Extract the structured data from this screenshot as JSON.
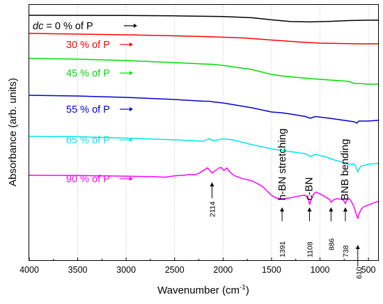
{
  "chart_data": {
    "type": "line",
    "xlabel_main": "Wavenumber (cm",
    "xlabel_sup": "-1",
    "xlabel_end": ")",
    "ylabel": "Absorbance (arb. units)",
    "xlim": [
      4000,
      400
    ],
    "x_ticks": [
      "4000",
      "3500",
      "3000",
      "2500",
      "2000",
      "1500",
      "1000",
      "500"
    ],
    "y_tick_labels": "none",
    "grid": "vertical dotted",
    "series": [
      {
        "label_prefix": "dc",
        "label_suffix": " = 0 % of P",
        "color": "#000000",
        "points": [
          [
            4000,
            0.0
          ],
          [
            3000,
            0.2
          ],
          [
            2500,
            0.8
          ],
          [
            2000,
            1.8
          ],
          [
            1700,
            3.5
          ],
          [
            1500,
            6.5
          ],
          [
            1300,
            9.0
          ],
          [
            1100,
            9.5
          ],
          [
            900,
            8.8
          ],
          [
            700,
            7.5
          ],
          [
            500,
            7.0
          ],
          [
            400,
            7.0
          ]
        ]
      },
      {
        "label": "30 % of P",
        "color": "#ff0000",
        "points": [
          [
            4000,
            0.0
          ],
          [
            3000,
            2.0
          ],
          [
            2500,
            3.5
          ],
          [
            2200,
            4.5
          ],
          [
            2100,
            5.0
          ],
          [
            1800,
            6.5
          ],
          [
            1500,
            9.5
          ],
          [
            1200,
            12.5
          ],
          [
            1000,
            14.0
          ],
          [
            800,
            14.5
          ],
          [
            600,
            15.0
          ],
          [
            400,
            15.0
          ]
        ]
      },
      {
        "label": "45 % of P",
        "color": "#00dd00",
        "points": [
          [
            4000,
            0.0
          ],
          [
            3500,
            1.0
          ],
          [
            3000,
            3.0
          ],
          [
            2500,
            6.0
          ],
          [
            2200,
            8.0
          ],
          [
            2100,
            8.5
          ],
          [
            2000,
            10.0
          ],
          [
            1700,
            16.0
          ],
          [
            1500,
            23.0
          ],
          [
            1400,
            25.0
          ],
          [
            1300,
            26.5
          ],
          [
            1100,
            29.0
          ],
          [
            900,
            31.0
          ],
          [
            700,
            33.0
          ],
          [
            650,
            36.0
          ],
          [
            600,
            36.0
          ],
          [
            500,
            37.0
          ],
          [
            400,
            37.0
          ]
        ]
      },
      {
        "label": "55 % of P",
        "color": "#0000cc",
        "points": [
          [
            4000,
            0.0
          ],
          [
            3500,
            1.0
          ],
          [
            3000,
            3.0
          ],
          [
            2500,
            6.0
          ],
          [
            2200,
            8.5
          ],
          [
            2150,
            8.5
          ],
          [
            2100,
            9.5
          ],
          [
            2000,
            11.0
          ],
          [
            1700,
            18.0
          ],
          [
            1500,
            24.0
          ],
          [
            1400,
            25.0
          ],
          [
            1300,
            27.0
          ],
          [
            1150,
            30.5
          ],
          [
            1100,
            33.0
          ],
          [
            1050,
            30.5
          ],
          [
            900,
            33.0
          ],
          [
            800,
            35.0
          ],
          [
            700,
            37.0
          ],
          [
            650,
            38.0
          ],
          [
            620,
            40.0
          ],
          [
            600,
            37.0
          ],
          [
            500,
            37.0
          ],
          [
            400,
            36.0
          ]
        ]
      },
      {
        "label": "65 % of P",
        "color": "#00e6e6",
        "points": [
          [
            4000,
            0.0
          ],
          [
            3500,
            0.5
          ],
          [
            3000,
            2.5
          ],
          [
            2500,
            5.0
          ],
          [
            2200,
            7.0
          ],
          [
            2150,
            3.5
          ],
          [
            2100,
            6.0
          ],
          [
            2050,
            5.0
          ],
          [
            2000,
            3.5
          ],
          [
            1900,
            5.0
          ],
          [
            1700,
            12.0
          ],
          [
            1500,
            18.0
          ],
          [
            1400,
            20.0
          ],
          [
            1300,
            22.0
          ],
          [
            1150,
            25.0
          ],
          [
            1100,
            29.0
          ],
          [
            1050,
            26.0
          ],
          [
            950,
            29.0
          ],
          [
            850,
            34.0
          ],
          [
            800,
            36.0
          ],
          [
            738,
            38.5
          ],
          [
            700,
            40.0
          ],
          [
            640,
            40.0
          ],
          [
            610,
            51.0
          ],
          [
            580,
            43.0
          ],
          [
            500,
            40.0
          ],
          [
            400,
            39.0
          ]
        ]
      },
      {
        "label": "90 % of P",
        "color": "#ff00ff",
        "points": [
          [
            4000,
            0.0
          ],
          [
            3500,
            0.3
          ],
          [
            3000,
            1.3
          ],
          [
            2700,
            2.0
          ],
          [
            2600,
            2.7
          ],
          [
            2500,
            0.7
          ],
          [
            2400,
            0.0
          ],
          [
            2350,
            -1.3
          ],
          [
            2300,
            -0.7
          ],
          [
            2250,
            -2.7
          ],
          [
            2200,
            -7.3
          ],
          [
            2160,
            -10.7
          ],
          [
            2114,
            -3.3
          ],
          [
            2080,
            -6.7
          ],
          [
            2040,
            -10.7
          ],
          [
            2020,
            -11.3
          ],
          [
            1990,
            -6.7
          ],
          [
            1960,
            -10.7
          ],
          [
            1930,
            -4.7
          ],
          [
            1880,
            0.7
          ],
          [
            1800,
            4.7
          ],
          [
            1700,
            8.0
          ],
          [
            1600,
            15.3
          ],
          [
            1500,
            28.7
          ],
          [
            1450,
            32.7
          ],
          [
            1391,
            34.0
          ],
          [
            1320,
            32.7
          ],
          [
            1250,
            30.7
          ],
          [
            1200,
            29.3
          ],
          [
            1150,
            28.7
          ],
          [
            1120,
            32.7
          ],
          [
            1108,
            42.0
          ],
          [
            1090,
            34.7
          ],
          [
            1060,
            26.0
          ],
          [
            1040,
            24.0
          ],
          [
            1000,
            26.7
          ],
          [
            950,
            30.7
          ],
          [
            900,
            34.7
          ],
          [
            886,
            38.7
          ],
          [
            860,
            35.3
          ],
          [
            820,
            33.3
          ],
          [
            760,
            35.3
          ],
          [
            738,
            40.7
          ],
          [
            720,
            35.3
          ],
          [
            700,
            33.3
          ],
          [
            680,
            36.7
          ],
          [
            650,
            44.7
          ],
          [
            625,
            56.0
          ],
          [
            610,
            62.0
          ],
          [
            595,
            54.7
          ],
          [
            570,
            48.0
          ],
          [
            540,
            44.7
          ],
          [
            500,
            42.7
          ],
          [
            400,
            37.3
          ]
        ]
      }
    ],
    "annotations": {
      "band_labels": [
        "h-BN stretching",
        "c-BN",
        "BNB bending"
      ],
      "peaks": [
        {
          "value": "2114",
          "wavenumber": 2114
        },
        {
          "value": "1391",
          "wavenumber": 1391
        },
        {
          "value": "1108",
          "wavenumber": 1108
        },
        {
          "value": "886",
          "wavenumber": 886
        },
        {
          "value": "738",
          "wavenumber": 738
        },
        {
          "value": "610",
          "wavenumber": 610
        }
      ]
    }
  }
}
